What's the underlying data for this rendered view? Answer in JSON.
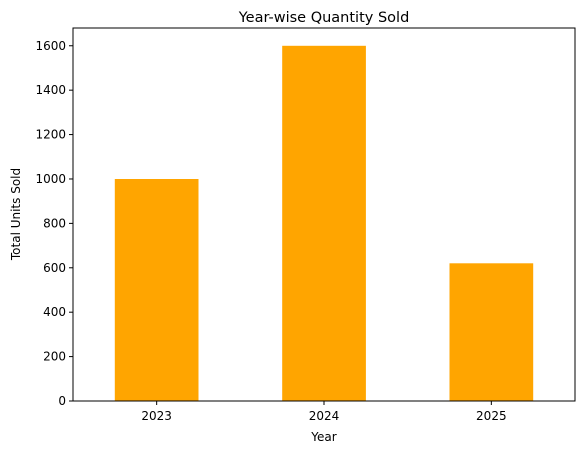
{
  "chart_data": {
    "type": "bar",
    "title": "Year-wise Quantity Sold",
    "xlabel": "Year",
    "ylabel": "Total Units Sold",
    "categories": [
      "2023",
      "2024",
      "2025"
    ],
    "values": [
      1000,
      1600,
      620
    ],
    "ylim": [
      0,
      1680
    ],
    "yticks": [
      0,
      200,
      400,
      600,
      800,
      1000,
      1200,
      1400,
      1600
    ],
    "bar_color": "#ffa500",
    "grid": false,
    "legend": "none"
  }
}
